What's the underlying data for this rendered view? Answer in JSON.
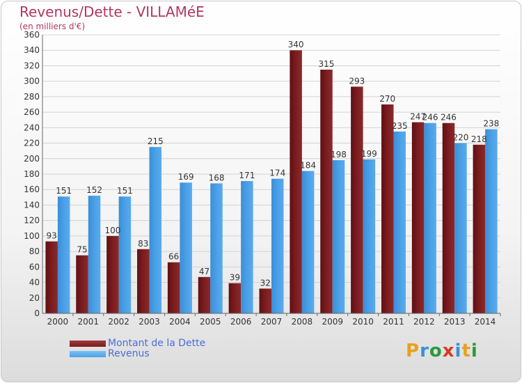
{
  "title": "Revenus/Dette - VILLAMéE",
  "subtitle": "(en milliers d'€)",
  "logo": {
    "text": "Proxiti",
    "colors": [
      "#e8a020",
      "#3a8fd8",
      "#2a9a3a",
      "#d83a20",
      "#3a8fd8",
      "#e8a020",
      "#2a9a3a"
    ]
  },
  "colors": {
    "dette": "#7a1b1e",
    "revenus": "#4aa0e6",
    "title": "#b2365f",
    "legend_text": "#4a6fd8"
  },
  "chart_data": {
    "type": "bar",
    "categories": [
      "2000",
      "2001",
      "2002",
      "2003",
      "2004",
      "2005",
      "2006",
      "2007",
      "2008",
      "2009",
      "2010",
      "2011",
      "2012",
      "2013",
      "2014"
    ],
    "series": [
      {
        "name": "Montant de la Dette",
        "values": [
          93,
          75,
          100,
          83,
          66,
          47,
          39,
          32,
          340,
          315,
          293,
          270,
          247,
          246,
          218
        ]
      },
      {
        "name": "Revenus",
        "values": [
          151,
          152,
          151,
          215,
          169,
          168,
          171,
          174,
          184,
          198,
          199,
          235,
          246,
          220,
          238
        ]
      }
    ],
    "ylim": [
      0,
      360
    ],
    "yticks": [
      0,
      20,
      40,
      60,
      80,
      100,
      120,
      140,
      160,
      180,
      200,
      220,
      240,
      260,
      280,
      300,
      320,
      340,
      360
    ],
    "grid": true,
    "legend": "bottom-left"
  }
}
